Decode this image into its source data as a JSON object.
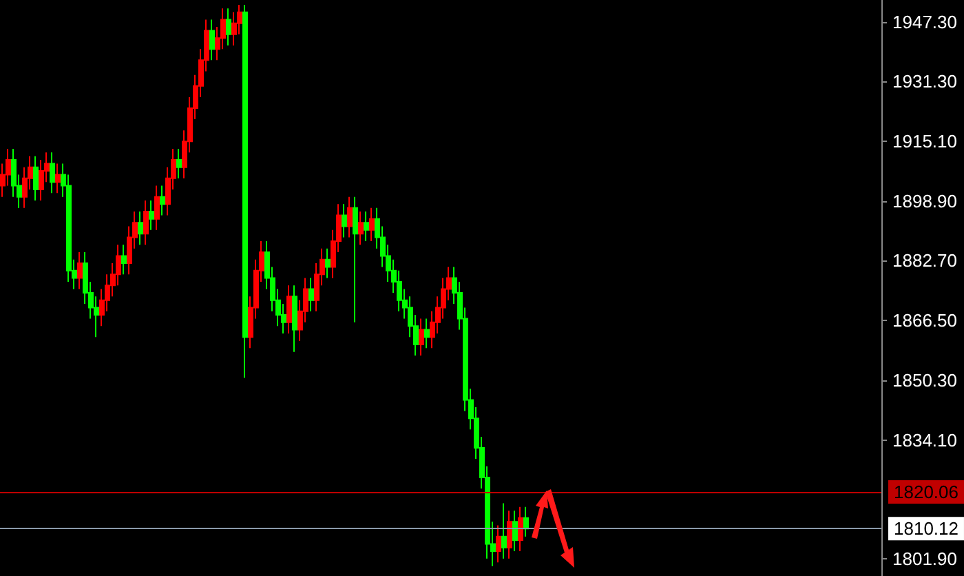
{
  "chart_data": {
    "type": "candlestick",
    "categories": [
      null,
      null,
      null,
      null,
      null,
      null,
      null,
      null,
      null,
      null,
      null,
      null,
      null,
      null,
      null,
      null,
      null,
      null,
      null,
      null,
      null,
      null,
      null,
      null,
      null,
      null,
      null,
      null,
      null,
      null,
      null,
      null,
      null,
      null,
      null,
      null,
      null,
      null,
      null,
      null,
      null,
      null,
      null,
      null,
      null,
      null,
      null,
      null,
      null,
      null,
      null,
      null,
      null,
      null,
      null,
      null,
      null,
      null,
      null,
      null,
      null,
      null,
      null,
      null,
      null,
      null,
      null,
      null,
      null,
      null,
      null,
      null,
      null,
      null,
      null,
      null,
      null,
      null,
      null,
      null,
      null,
      null,
      null,
      null,
      null,
      null,
      null,
      null,
      null,
      null,
      null,
      null,
      null,
      null,
      null,
      null,
      null,
      null,
      null,
      null,
      null,
      null,
      null,
      null,
      null,
      null,
      null,
      null,
      null,
      null,
      null,
      null,
      null,
      null,
      null,
      null,
      null,
      null,
      null,
      null,
      null,
      null,
      null,
      null,
      null,
      null,
      null,
      null,
      null,
      null,
      null,
      null,
      null,
      null,
      null,
      null,
      null,
      null,
      null,
      null,
      null,
      null,
      null,
      null,
      null,
      null,
      null,
      null,
      null,
      null,
      null,
      null,
      null,
      null,
      null,
      null,
      null,
      null,
      null,
      null
    ],
    "ohlc": [
      [
        1903,
        1909,
        1900,
        1906
      ],
      [
        1906,
        1913,
        1903,
        1910
      ],
      [
        1910,
        1913,
        1900,
        1903
      ],
      [
        1903,
        1906,
        1897,
        1900
      ],
      [
        1900,
        1908,
        1897,
        1905
      ],
      [
        1905,
        1911,
        1902,
        1908
      ],
      [
        1908,
        1911,
        1899,
        1902
      ],
      [
        1902,
        1910,
        1899,
        1907
      ],
      [
        1907,
        1912,
        1904,
        1909
      ],
      [
        1909,
        1912,
        1901,
        1904
      ],
      [
        1904,
        1909,
        1901,
        1906
      ],
      [
        1906,
        1909,
        1900,
        1903
      ],
      [
        1903,
        1906,
        1877,
        1880
      ],
      [
        1880,
        1883,
        1875,
        1878
      ],
      [
        1878,
        1885,
        1875,
        1882
      ],
      [
        1882,
        1885,
        1871,
        1874
      ],
      [
        1874,
        1877,
        1867,
        1870
      ],
      [
        1870,
        1873,
        1862,
        1868
      ],
      [
        1868,
        1875,
        1865,
        1872
      ],
      [
        1872,
        1879,
        1869,
        1876
      ],
      [
        1876,
        1882,
        1873,
        1879
      ],
      [
        1879,
        1887,
        1876,
        1884
      ],
      [
        1884,
        1887,
        1879,
        1882
      ],
      [
        1882,
        1892,
        1879,
        1889
      ],
      [
        1889,
        1896,
        1886,
        1893
      ],
      [
        1893,
        1896,
        1887,
        1890
      ],
      [
        1890,
        1899,
        1887,
        1896
      ],
      [
        1896,
        1899,
        1891,
        1894
      ],
      [
        1894,
        1903,
        1891,
        1900
      ],
      [
        1900,
        1903,
        1895,
        1898
      ],
      [
        1898,
        1908,
        1895,
        1905
      ],
      [
        1905,
        1913,
        1902,
        1910
      ],
      [
        1910,
        1913,
        1905,
        1908
      ],
      [
        1908,
        1918,
        1905,
        1915
      ],
      [
        1915,
        1927,
        1912,
        1924
      ],
      [
        1924,
        1933,
        1921,
        1930
      ],
      [
        1930,
        1940,
        1927,
        1937
      ],
      [
        1937,
        1948,
        1934,
        1945
      ],
      [
        1945,
        1948,
        1937,
        1940
      ],
      [
        1940,
        1946,
        1937,
        1943
      ],
      [
        1943,
        1951,
        1940,
        1948
      ],
      [
        1948,
        1951,
        1941,
        1944
      ],
      [
        1944,
        1950,
        1941,
        1947
      ],
      [
        1947,
        1952,
        1944,
        1950
      ],
      [
        1950,
        1952,
        1851,
        1862
      ],
      [
        1862,
        1873,
        1859,
        1870
      ],
      [
        1870,
        1883,
        1867,
        1880
      ],
      [
        1880,
        1888,
        1877,
        1885
      ],
      [
        1885,
        1888,
        1875,
        1878
      ],
      [
        1878,
        1881,
        1869,
        1872
      ],
      [
        1872,
        1875,
        1865,
        1868
      ],
      [
        1868,
        1871,
        1863,
        1866
      ],
      [
        1866,
        1876,
        1863,
        1873
      ],
      [
        1873,
        1876,
        1858,
        1864
      ],
      [
        1864,
        1872,
        1861,
        1869
      ],
      [
        1869,
        1878,
        1866,
        1875
      ],
      [
        1875,
        1878,
        1869,
        1872
      ],
      [
        1872,
        1882,
        1869,
        1879
      ],
      [
        1879,
        1886,
        1876,
        1883
      ],
      [
        1883,
        1886,
        1878,
        1881
      ],
      [
        1881,
        1891,
        1878,
        1888
      ],
      [
        1888,
        1898,
        1885,
        1895
      ],
      [
        1895,
        1898,
        1889,
        1892
      ],
      [
        1892,
        1900,
        1889,
        1897
      ],
      [
        1897,
        1900,
        1866,
        1890
      ],
      [
        1890,
        1896,
        1887,
        1893
      ],
      [
        1893,
        1896,
        1888,
        1891
      ],
      [
        1891,
        1897,
        1888,
        1894
      ],
      [
        1894,
        1897,
        1886,
        1889
      ],
      [
        1889,
        1892,
        1881,
        1884
      ],
      [
        1884,
        1887,
        1877,
        1880
      ],
      [
        1880,
        1883,
        1874,
        1877
      ],
      [
        1877,
        1880,
        1869,
        1872
      ],
      [
        1872,
        1875,
        1867,
        1870
      ],
      [
        1870,
        1873,
        1862,
        1865
      ],
      [
        1865,
        1868,
        1857,
        1860
      ],
      [
        1860,
        1867,
        1857,
        1864
      ],
      [
        1864,
        1867,
        1859,
        1862
      ],
      [
        1862,
        1869,
        1859,
        1866
      ],
      [
        1866,
        1873,
        1863,
        1870
      ],
      [
        1870,
        1878,
        1867,
        1875
      ],
      [
        1875,
        1881,
        1872,
        1878
      ],
      [
        1878,
        1881,
        1871,
        1874
      ],
      [
        1874,
        1877,
        1864,
        1867
      ],
      [
        1867,
        1870,
        1842,
        1845
      ],
      [
        1845,
        1848,
        1837,
        1840
      ],
      [
        1840,
        1843,
        1829,
        1832
      ],
      [
        1832,
        1835,
        1821,
        1824
      ],
      [
        1824,
        1827,
        1802,
        1806
      ],
      [
        1806,
        1812,
        1800,
        1804
      ],
      [
        1804,
        1811,
        1801,
        1808
      ],
      [
        1808,
        1817,
        1802,
        1805
      ],
      [
        1805,
        1815,
        1802,
        1812
      ],
      [
        1812,
        1815,
        1804,
        1807
      ],
      [
        1807,
        1816,
        1804,
        1813
      ],
      [
        1813,
        1816,
        1808,
        1810.12
      ],
      null,
      null,
      null,
      null,
      null,
      null,
      null,
      null,
      null,
      null,
      null,
      null,
      null,
      null,
      null,
      null,
      null,
      null,
      null,
      null,
      null,
      null,
      null,
      null,
      null,
      null,
      null,
      null,
      null,
      null,
      null,
      null,
      null,
      null,
      null,
      null,
      null,
      null,
      null,
      null,
      null,
      null,
      null,
      null,
      null,
      null,
      null,
      null,
      null,
      null,
      null,
      null,
      null,
      null,
      null,
      null,
      null,
      null,
      null,
      null,
      null,
      null,
      null,
      null
    ],
    "ylim": [
      1797.3,
      1953.3
    ],
    "yticks": [
      {
        "value": 1801.9,
        "label": "1801.90"
      },
      {
        "value": 1834.1,
        "label": "1834.10"
      },
      {
        "value": 1850.3,
        "label": "1850.30"
      },
      {
        "value": 1866.5,
        "label": "1866.50"
      },
      {
        "value": 1882.7,
        "label": "1882.70"
      },
      {
        "value": 1898.9,
        "label": "1898.90"
      },
      {
        "value": 1915.1,
        "label": "1915.10"
      },
      {
        "value": 1931.3,
        "label": "1931.30"
      },
      {
        "value": 1947.3,
        "label": "1947.30"
      }
    ],
    "ref_lines": [
      {
        "axis": "y",
        "value": 1820.06,
        "label": "1820.06",
        "color": "#c00000"
      },
      {
        "axis": "y",
        "value": 1810.12,
        "label": "1810.12",
        "color": "#8a9aaa"
      }
    ],
    "tick_labels": "y",
    "grid": false
  }
}
